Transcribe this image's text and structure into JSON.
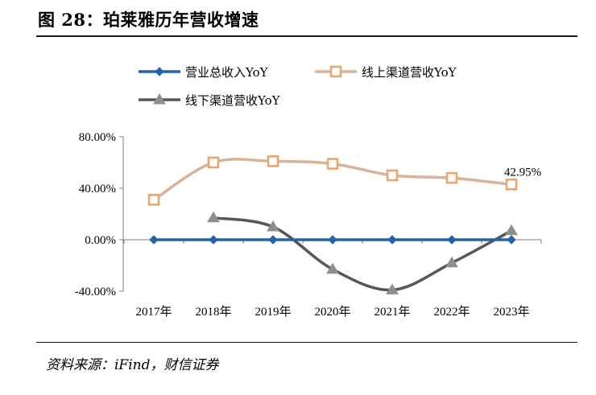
{
  "figure": {
    "title": "图 28：珀莱雅历年营收增速",
    "source": "资料来源：iFind，财信证券"
  },
  "chart_data": {
    "type": "line",
    "title": "",
    "xlabel": "",
    "ylabel": "",
    "categories": [
      "2017年",
      "2018年",
      "2019年",
      "2020年",
      "2021年",
      "2022年",
      "2023年"
    ],
    "ylim": [
      -40,
      80
    ],
    "yticks": [
      80,
      40,
      0,
      -40
    ],
    "ytick_labels": [
      "80.00%",
      "40.00%",
      "0.00%",
      "-40.00%"
    ],
    "legend_position": "top",
    "grid": false,
    "series": [
      {
        "name": "营业总收入YoY",
        "color": "#2463a8",
        "marker": "diamond",
        "values": [
          0,
          0,
          0,
          0,
          0,
          0,
          0
        ]
      },
      {
        "name": "线上渠道营收YoY",
        "color": "#e9a66f",
        "line_color": "#d9b399",
        "marker": "square",
        "values": [
          31,
          60,
          61,
          59,
          50,
          48,
          42.95
        ]
      },
      {
        "name": "线下渠道营收YoY",
        "color": "#5a5658",
        "marker_color": "#8e8e8e",
        "marker": "triangle",
        "values": [
          null,
          17,
          10,
          -23,
          -39,
          -18,
          7
        ]
      }
    ],
    "annotations": [
      {
        "series": 1,
        "index": 6,
        "text": "42.95%"
      }
    ]
  }
}
